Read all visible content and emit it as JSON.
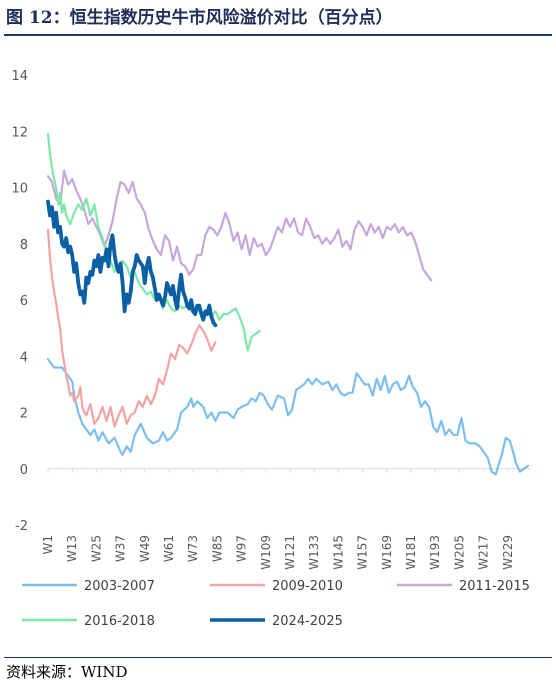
{
  "header": {
    "title": "图 12：恒生指数历史牛市风险溢价对比（百分点）"
  },
  "footer": {
    "source": "资料来源：WIND"
  },
  "chart_data": {
    "type": "line",
    "title": "",
    "xlabel": "",
    "ylabel": "",
    "ylim": [
      -2,
      14
    ],
    "yticks": [
      -2,
      0,
      2,
      4,
      6,
      8,
      10,
      12,
      14
    ],
    "xlim": [
      1,
      240
    ],
    "xticks": [
      "W1",
      "W13",
      "W25",
      "W37",
      "W49",
      "W61",
      "W73",
      "W85",
      "W97",
      "W109",
      "W121",
      "W133",
      "W145",
      "W157",
      "W169",
      "W181",
      "W193",
      "W205",
      "W217",
      "W229"
    ],
    "grid": false,
    "legend_position": "bottom",
    "series": [
      {
        "name": "2003-2007",
        "color": "#7cbfef",
        "width": 2.2,
        "x": [
          1,
          4,
          8,
          11,
          13,
          14,
          16,
          18,
          22,
          24,
          26,
          28,
          31,
          34,
          37,
          38,
          40,
          42,
          44,
          47,
          50,
          53,
          56,
          58,
          60,
          62,
          65,
          67,
          70,
          72,
          73,
          75,
          78,
          80,
          82,
          84,
          86,
          88,
          90,
          93,
          95,
          97,
          100,
          102,
          104,
          106,
          108,
          110,
          112,
          115,
          118,
          120,
          122,
          124,
          128,
          130,
          132,
          134,
          137,
          140,
          142,
          144,
          146,
          148,
          150,
          152,
          154,
          156,
          158,
          160,
          162,
          164,
          166,
          168,
          170,
          172,
          174,
          176,
          178,
          180,
          182,
          184,
          186,
          188,
          190,
          192,
          194,
          196,
          198,
          200,
          202,
          204,
          206,
          208,
          210,
          213,
          215,
          217,
          219,
          221,
          223,
          226,
          228,
          230,
          232,
          233,
          235,
          237,
          239
        ],
        "y": [
          3.9,
          3.6,
          3.6,
          3.3,
          3.1,
          2.6,
          2.0,
          1.6,
          1.2,
          1.4,
          1.0,
          1.3,
          0.9,
          1.1,
          0.6,
          0.5,
          0.8,
          0.6,
          1.2,
          1.6,
          1.1,
          0.9,
          1.0,
          1.3,
          1.0,
          1.1,
          1.4,
          2.0,
          2.2,
          2.5,
          2.2,
          2.4,
          2.2,
          1.8,
          2.0,
          1.7,
          2.0,
          2.0,
          2.0,
          1.8,
          2.1,
          2.2,
          2.3,
          2.5,
          2.4,
          2.7,
          2.6,
          2.3,
          2.1,
          2.6,
          2.5,
          1.9,
          2.1,
          2.8,
          3.0,
          3.2,
          3.0,
          3.2,
          3.0,
          3.1,
          2.8,
          3.0,
          2.7,
          2.6,
          2.7,
          2.7,
          3.4,
          3.2,
          3.0,
          3.0,
          2.6,
          3.2,
          2.8,
          3.3,
          2.7,
          3.0,
          3.1,
          2.8,
          2.9,
          3.3,
          2.9,
          2.7,
          2.2,
          2.4,
          2.2,
          1.5,
          1.3,
          1.7,
          1.2,
          1.4,
          1.2,
          1.2,
          1.8,
          1.0,
          0.9,
          0.9,
          0.8,
          0.6,
          0.4,
          -0.1,
          -0.2,
          0.5,
          1.1,
          1.0,
          0.5,
          0.2,
          -0.1,
          0.0,
          0.1
        ]
      },
      {
        "name": "2009-2010",
        "color": "#f4a3a3",
        "width": 2.2,
        "x": [
          1,
          2,
          3,
          4,
          5,
          6,
          7,
          8,
          9,
          10,
          11,
          12,
          13,
          14,
          15,
          16,
          17,
          18,
          19,
          20,
          22,
          24,
          26,
          28,
          30,
          32,
          34,
          36,
          38,
          40,
          42,
          44,
          46,
          48,
          50,
          52,
          54,
          56,
          58,
          60,
          62,
          64,
          66,
          68,
          70,
          72,
          74,
          76,
          78,
          80,
          82,
          84
        ],
        "y": [
          8.5,
          7.5,
          6.8,
          6.3,
          5.9,
          5.4,
          5.0,
          4.2,
          3.8,
          3.3,
          3.0,
          2.6,
          2.7,
          2.4,
          2.5,
          2.6,
          2.9,
          2.2,
          2.0,
          1.9,
          2.3,
          1.6,
          1.8,
          2.2,
          1.7,
          2.2,
          1.5,
          1.9,
          2.2,
          1.6,
          1.9,
          2.0,
          2.4,
          2.2,
          2.6,
          2.3,
          2.6,
          3.2,
          3.0,
          3.5,
          4.1,
          3.9,
          4.4,
          4.3,
          4.1,
          4.4,
          4.8,
          5.1,
          4.9,
          4.6,
          4.2,
          4.5
        ]
      },
      {
        "name": "2011-2015",
        "color": "#c7a6dd",
        "width": 2.2,
        "x": [
          1,
          3,
          5,
          7,
          9,
          11,
          13,
          15,
          17,
          19,
          21,
          23,
          25,
          27,
          29,
          31,
          33,
          35,
          37,
          39,
          41,
          43,
          45,
          47,
          49,
          51,
          53,
          55,
          57,
          59,
          61,
          63,
          65,
          67,
          69,
          71,
          73,
          75,
          77,
          79,
          81,
          83,
          85,
          87,
          89,
          91,
          93,
          95,
          97,
          99,
          101,
          103,
          105,
          107,
          109,
          111,
          113,
          115,
          117,
          119,
          121,
          123,
          125,
          127,
          129,
          131,
          133,
          135,
          137,
          139,
          141,
          143,
          145,
          147,
          149,
          151,
          153,
          155,
          157,
          159,
          161,
          163,
          165,
          167,
          169,
          171,
          173,
          175,
          177,
          179,
          181,
          183,
          185,
          187,
          189,
          191
        ],
        "y": [
          10.4,
          10.2,
          9.6,
          9.4,
          10.6,
          10.1,
          10.3,
          9.9,
          9.6,
          9.2,
          8.7,
          8.9,
          8.6,
          8.3,
          7.9,
          8.3,
          8.8,
          9.6,
          10.2,
          10.1,
          9.8,
          10.2,
          9.6,
          9.4,
          9.1,
          8.5,
          8.1,
          7.8,
          7.6,
          8.3,
          8.1,
          7.4,
          7.9,
          7.3,
          7.2,
          6.9,
          7.1,
          7.6,
          7.6,
          8.3,
          8.6,
          8.5,
          8.3,
          8.6,
          9.1,
          8.7,
          8.1,
          8.4,
          7.8,
          8.3,
          7.6,
          8.2,
          7.9,
          8.0,
          7.6,
          7.8,
          8.2,
          8.6,
          8.4,
          8.9,
          8.6,
          8.9,
          8.4,
          8.3,
          8.9,
          8.6,
          8.2,
          8.3,
          8.0,
          8.2,
          8.0,
          8.2,
          8.5,
          7.9,
          8.1,
          7.8,
          8.5,
          8.8,
          8.6,
          8.3,
          8.7,
          8.4,
          8.6,
          8.2,
          8.6,
          8.5,
          8.7,
          8.4,
          8.6,
          8.3,
          8.4,
          8.1,
          7.6,
          7.1,
          6.9,
          6.7
        ]
      },
      {
        "name": "2016-2018",
        "color": "#7ce8a8",
        "width": 2.2,
        "x": [
          1,
          2,
          3,
          4,
          5,
          6,
          7,
          8,
          9,
          10,
          12,
          14,
          16,
          18,
          20,
          22,
          24,
          26,
          28,
          30,
          32,
          34,
          36,
          38,
          40,
          42,
          44,
          46,
          48,
          50,
          52,
          54,
          56,
          58,
          60,
          62,
          64,
          66,
          68,
          70,
          72,
          74,
          76,
          78,
          80,
          82,
          84,
          86,
          88,
          90,
          92,
          94,
          96,
          98,
          100,
          102,
          104,
          106
        ],
        "y": [
          11.9,
          11.2,
          10.7,
          10.3,
          10.0,
          9.4,
          9.8,
          9.1,
          9.4,
          9.0,
          8.7,
          9.1,
          9.4,
          9.2,
          9.6,
          9.0,
          9.4,
          8.6,
          8.2,
          7.8,
          7.4,
          7.0,
          7.2,
          7.4,
          7.2,
          6.8,
          7.0,
          6.6,
          6.4,
          6.2,
          6.3,
          6.0,
          6.2,
          5.7,
          6.0,
          5.7,
          5.6,
          5.8,
          5.7,
          5.8,
          5.6,
          5.5,
          5.7,
          5.5,
          5.6,
          5.4,
          5.6,
          5.3,
          5.5,
          5.5,
          5.6,
          5.7,
          5.4,
          5.0,
          4.2,
          4.7,
          4.8,
          4.9
        ]
      },
      {
        "name": "2024-2025",
        "color": "#0b5fa5",
        "width": 3.8,
        "x": [
          1,
          2,
          3,
          4,
          5,
          6,
          7,
          8,
          9,
          10,
          11,
          12,
          13,
          14,
          15,
          16,
          17,
          18,
          19,
          20,
          21,
          22,
          23,
          24,
          25,
          26,
          27,
          28,
          29,
          30,
          31,
          32,
          33,
          34,
          35,
          36,
          37,
          38,
          39,
          40,
          41,
          42,
          43,
          44,
          45,
          46,
          47,
          48,
          49,
          50,
          51,
          52,
          53,
          54,
          55,
          56,
          57,
          58,
          59,
          60,
          61,
          62,
          63,
          64,
          65,
          66,
          67,
          68,
          69,
          70,
          71,
          72,
          73,
          74,
          75,
          76,
          77,
          78,
          79,
          80,
          81,
          82,
          83,
          84
        ],
        "y": [
          9.5,
          9.0,
          9.3,
          8.6,
          9.1,
          8.4,
          8.6,
          8.0,
          7.9,
          8.2,
          7.7,
          7.9,
          7.6,
          7.0,
          7.3,
          6.6,
          6.2,
          6.3,
          5.9,
          6.8,
          6.6,
          7.0,
          6.9,
          7.4,
          7.2,
          7.6,
          7.0,
          7.5,
          7.4,
          7.8,
          7.2,
          8.0,
          8.3,
          7.6,
          7.2,
          7.0,
          7.3,
          6.6,
          5.6,
          6.2,
          5.9,
          6.3,
          7.0,
          7.2,
          7.6,
          7.4,
          7.3,
          7.2,
          6.6,
          7.2,
          7.5,
          7.0,
          6.8,
          6.4,
          6.0,
          6.2,
          6.0,
          5.8,
          6.1,
          6.6,
          6.4,
          6.2,
          6.5,
          6.0,
          5.7,
          6.4,
          6.9,
          6.3,
          6.1,
          5.8,
          5.7,
          6.0,
          5.6,
          5.5,
          5.8,
          5.8,
          5.5,
          5.3,
          5.6,
          5.5,
          5.8,
          5.4,
          5.2,
          5.1
        ]
      }
    ]
  }
}
